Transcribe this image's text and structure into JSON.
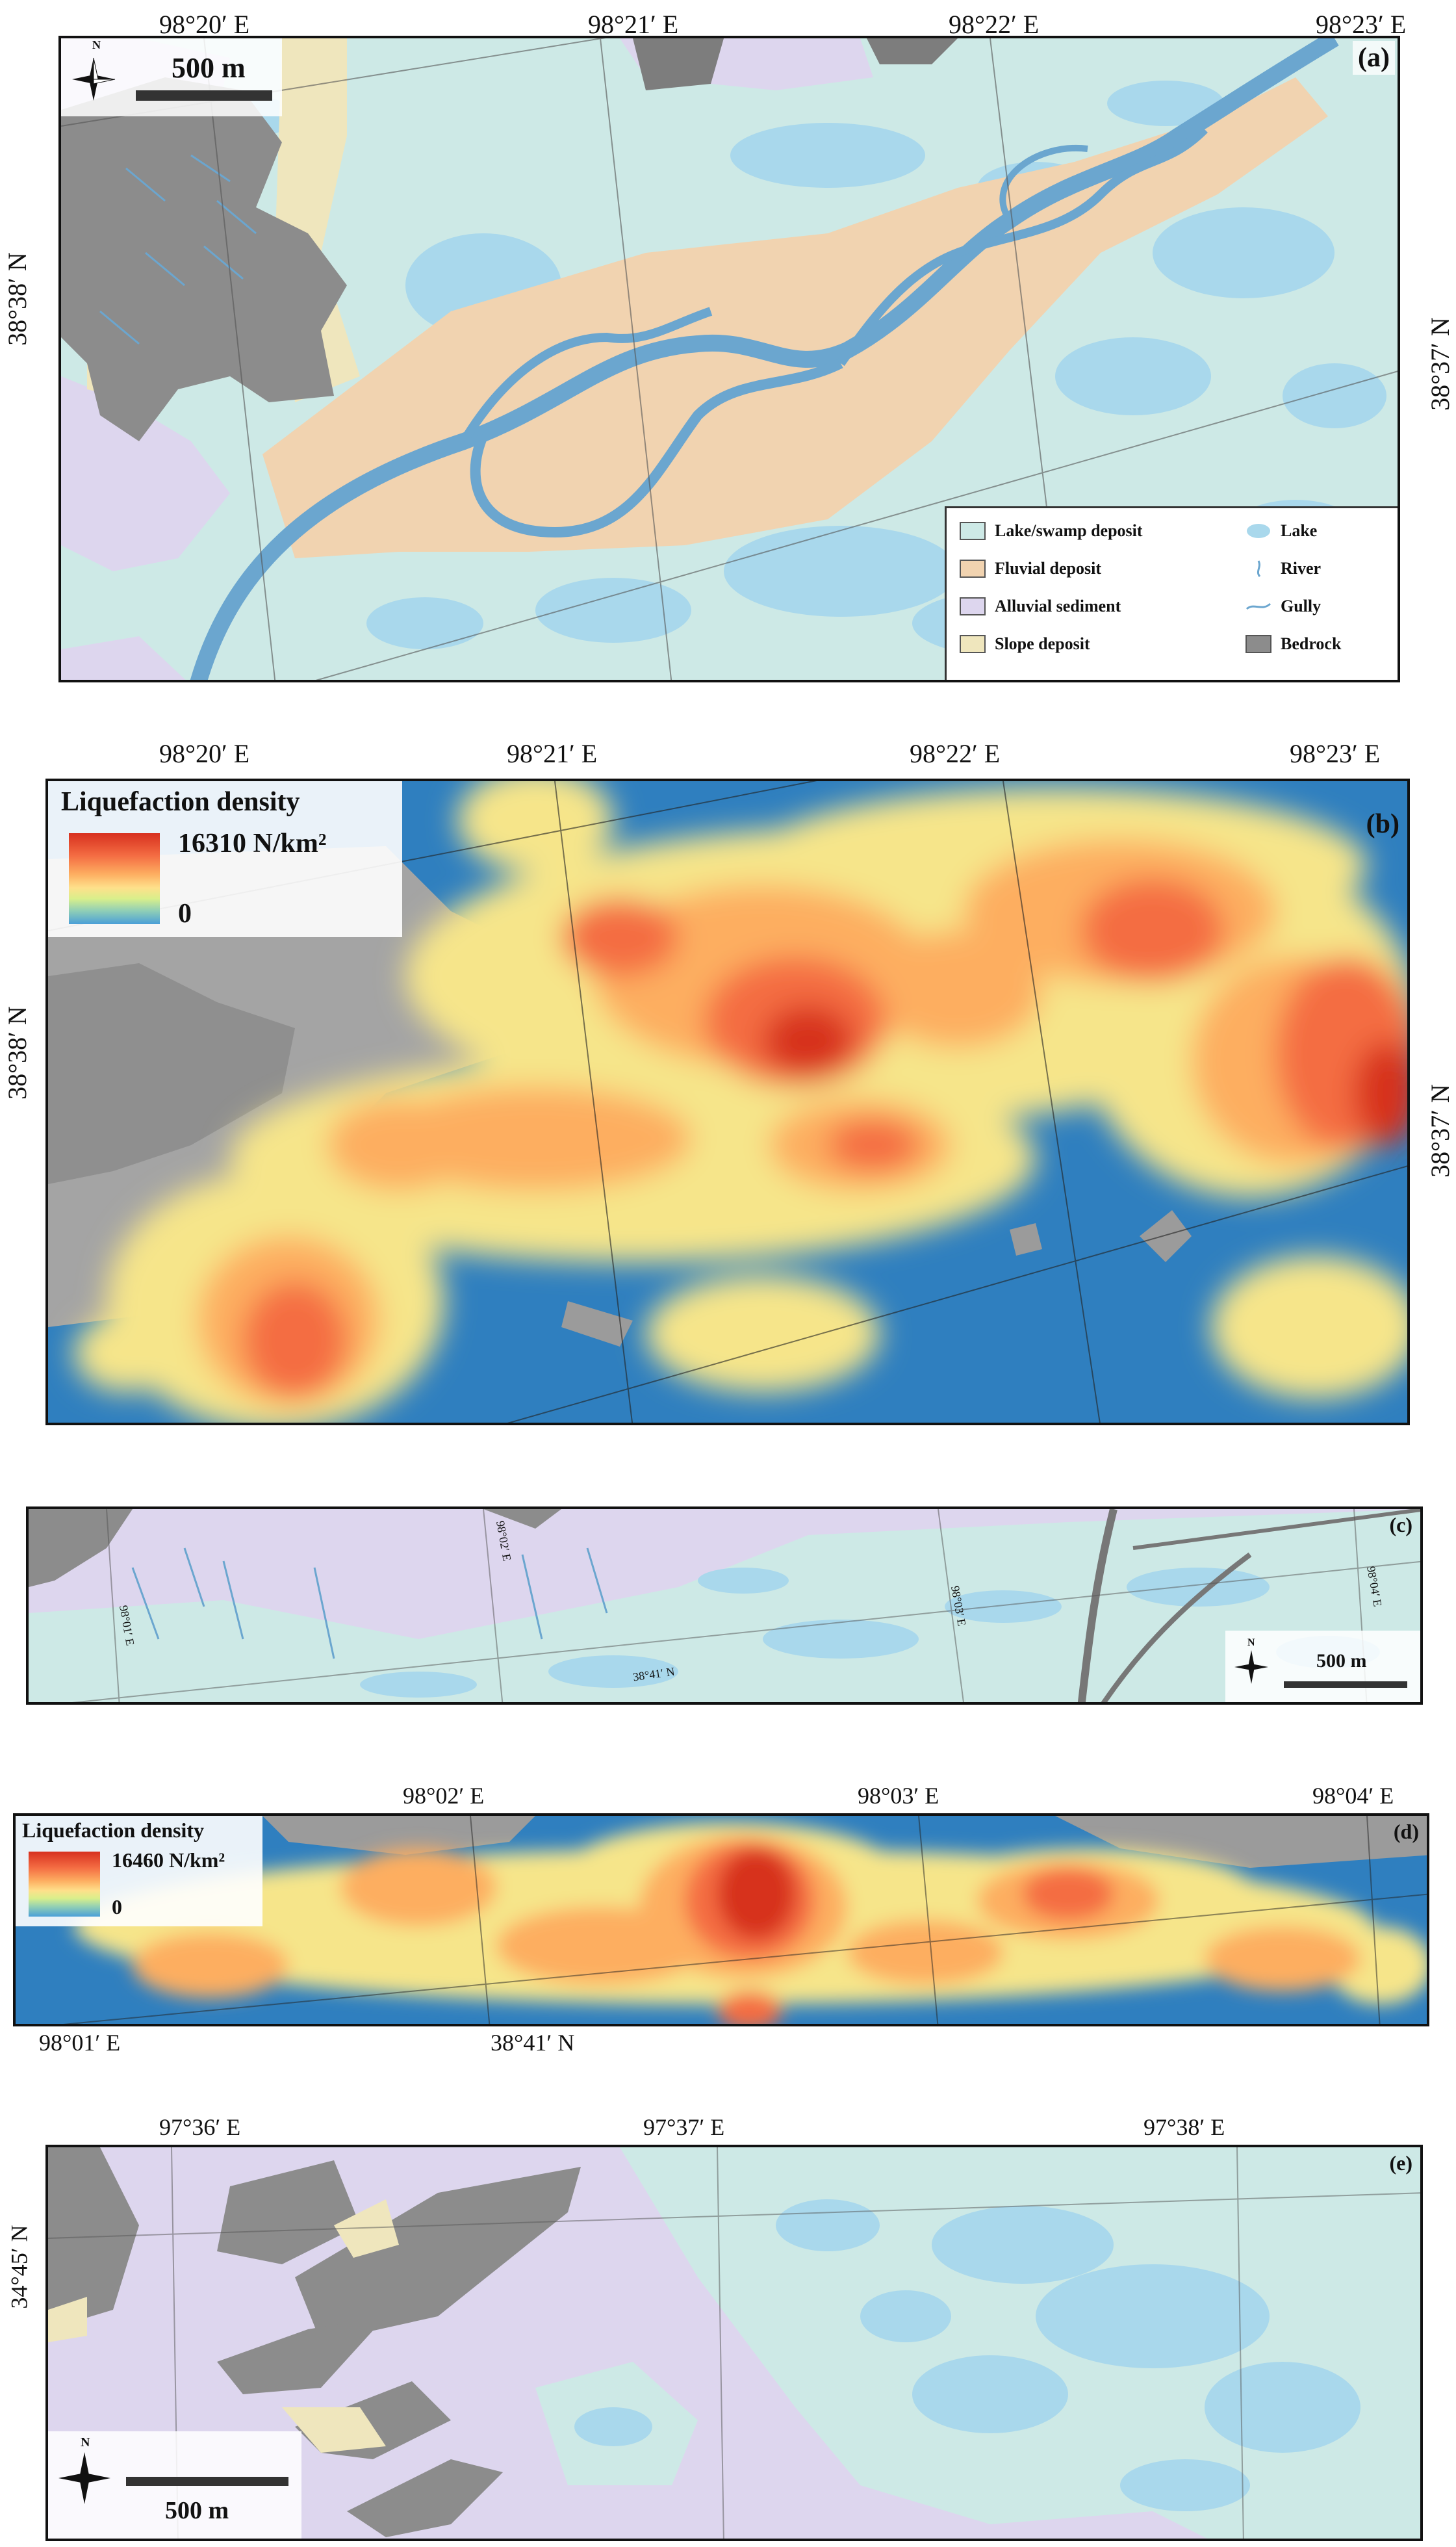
{
  "colors": {
    "lake_swamp": "#cde9e6",
    "fluvial": "#f1d3b0",
    "alluvial": "#ddd6ee",
    "slope": "#efe6bd",
    "bedrock": "#8c8c8c",
    "lake": "#a9d8ec",
    "river": "#6ba6cf",
    "dens_high": "#d7301f",
    "dens_low": "#2f7fbf"
  },
  "panel_a": {
    "label": "(a)",
    "top_coords": [
      "98°20′ E",
      "98°21′ E",
      "98°22′ E",
      "98°23′ E"
    ],
    "left_coord": "38°38′ N",
    "right_coord": "38°37′ N",
    "scale": "500 m",
    "north": "N",
    "legend": [
      {
        "label": "Lake/swamp deposit",
        "icon": "swatch",
        "color": "#cde9e6"
      },
      {
        "label": "Lake",
        "icon": "lake-icon",
        "color": "#a9d8ec"
      },
      {
        "label": "Fluvial deposit",
        "icon": "swatch",
        "color": "#f1d3b0"
      },
      {
        "label": "River",
        "icon": "river-icon",
        "color": "#6ba6cf"
      },
      {
        "label": "Alluvial sediment",
        "icon": "swatch",
        "color": "#ddd6ee"
      },
      {
        "label": "Gully",
        "icon": "gully-icon",
        "color": "#6ba6cf"
      },
      {
        "label": "Slope deposit",
        "icon": "swatch",
        "color": "#efe6bd"
      },
      {
        "label": "Bedrock",
        "icon": "swatch",
        "color": "#8c8c8c"
      }
    ]
  },
  "panel_b": {
    "label": "(b)",
    "top_coords": [
      "98°20′ E",
      "98°21′ E",
      "98°22′ E",
      "98°23′ E"
    ],
    "left_coord": "38°38′ N",
    "right_coord": "38°37′ N",
    "density_title": "Liquefaction density",
    "density_max": "16310  N/km²",
    "density_min": "0"
  },
  "panel_c": {
    "label": "(c)",
    "grid_labels": [
      "98°01′ E",
      "98°02′ E",
      "98°03′ E",
      "98°04′ E",
      "38°41′ N"
    ],
    "scale": "500 m",
    "north": "N"
  },
  "panel_d": {
    "label": "(d)",
    "top_coords": [
      "98°02′ E",
      "98°03′ E",
      "98°04′ E"
    ],
    "bottom_coords": [
      "98°01′ E",
      "38°41′ N"
    ],
    "density_title": "Liquefaction density",
    "density_max": "16460  N/km²",
    "density_min": "0"
  },
  "panel_e": {
    "label": "(e)",
    "top_coords": [
      "97°36′ E",
      "97°37′ E",
      "97°38′ E"
    ],
    "left_coord": "34°45′ N",
    "scale": "500 m",
    "north": "N"
  }
}
